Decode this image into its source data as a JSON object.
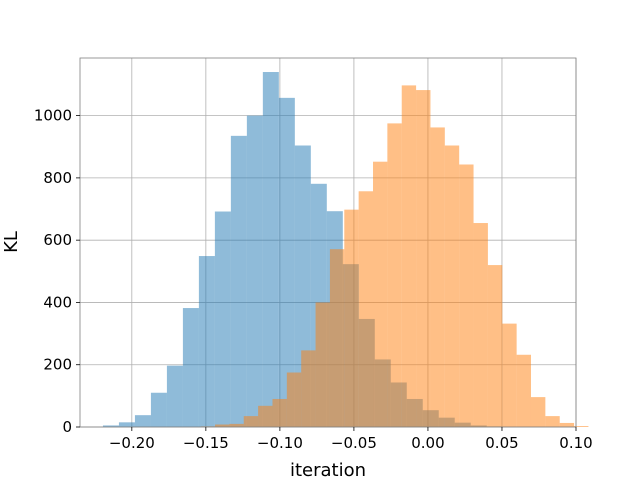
{
  "chart_data": {
    "type": "histogram",
    "title": "",
    "xlabel": "iteration",
    "ylabel": "KL",
    "xlim": [
      -0.235,
      0.1
    ],
    "ylim": [
      0,
      1185
    ],
    "xticks": [
      -0.2,
      -0.15,
      -0.1,
      -0.05,
      0.0,
      0.05,
      0.1
    ],
    "xtick_labels": [
      "−0.20",
      "−0.15",
      "−0.10",
      "−0.05",
      "0.00",
      "0.05",
      "0.10"
    ],
    "yticks": [
      0,
      200,
      400,
      600,
      800,
      1000
    ],
    "ytick_labels": [
      "0",
      "200",
      "400",
      "600",
      "800",
      "1000"
    ],
    "grid": true,
    "series": [
      {
        "color": "#1f77b4",
        "alpha": 0.5,
        "bin_start": -0.2195,
        "bin_width": 0.0108,
        "counts": [
          5,
          15,
          38,
          110,
          197,
          382,
          549,
          692,
          935,
          1000,
          1140,
          1057,
          904,
          781,
          693,
          523,
          347,
          217,
          143,
          90,
          54,
          30,
          14,
          5,
          2
        ]
      },
      {
        "color": "#ff7f0e",
        "alpha": 0.5,
        "bin_start": -0.1535,
        "bin_width": 0.0097,
        "counts": [
          2,
          8,
          10,
          35,
          68,
          90,
          175,
          246,
          400,
          571,
          698,
          757,
          852,
          975,
          1097,
          1082,
          962,
          904,
          843,
          655,
          520,
          332,
          232,
          96,
          35,
          13,
          3
        ]
      }
    ]
  }
}
